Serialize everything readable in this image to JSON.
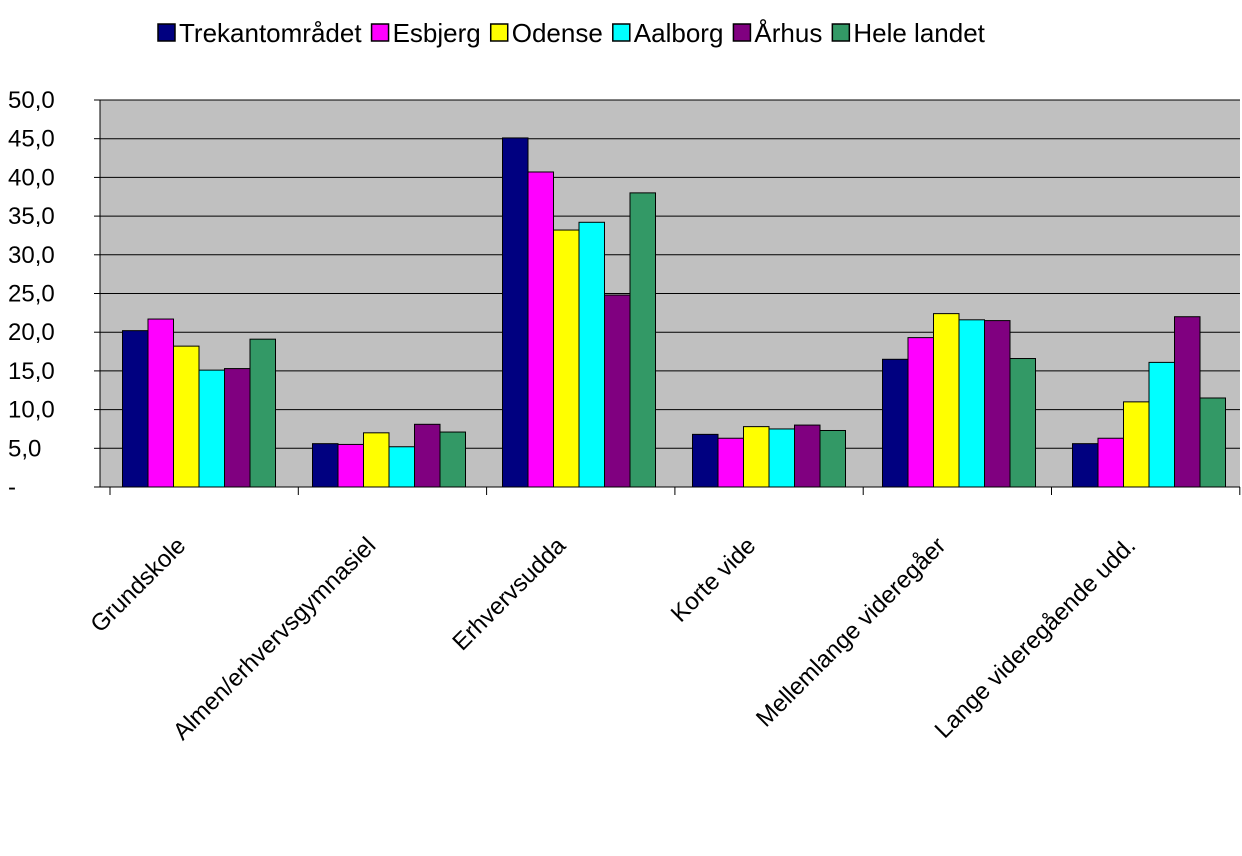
{
  "chart_data": {
    "type": "bar",
    "categories": [
      "Grundskole",
      "Almen/erhvervsgymnasiel",
      "Erhvervsudda",
      "Korte vide",
      "Mellemlange videregåer",
      "Lange videregående udd."
    ],
    "series": [
      {
        "name": "Trekantområdet",
        "color": "#000080",
        "values": [
          20.2,
          5.6,
          45.1,
          6.8,
          16.5,
          5.6
        ]
      },
      {
        "name": "Esbjerg",
        "color": "#FF00FF",
        "values": [
          21.7,
          5.5,
          40.7,
          6.3,
          19.3,
          6.3
        ]
      },
      {
        "name": "Odense",
        "color": "#FFFF00",
        "values": [
          18.2,
          7.0,
          33.2,
          7.8,
          22.4,
          11.0
        ]
      },
      {
        "name": "Aalborg",
        "color": "#00FFFF",
        "values": [
          15.1,
          5.2,
          34.2,
          7.5,
          21.6,
          16.1
        ]
      },
      {
        "name": "Århus",
        "color": "#800080",
        "values": [
          15.3,
          8.1,
          24.8,
          8.0,
          21.5,
          22.0
        ]
      },
      {
        "name": "Hele landet",
        "color": "#339966",
        "values": [
          19.1,
          7.1,
          38.0,
          7.3,
          16.6,
          11.5
        ]
      }
    ],
    "ylim": [
      0,
      50
    ],
    "yticks": [
      {
        "value": 0,
        "label": "-"
      },
      {
        "value": 5,
        "label": "5,0"
      },
      {
        "value": 10,
        "label": "10,0"
      },
      {
        "value": 15,
        "label": "15,0"
      },
      {
        "value": 20,
        "label": "20,0"
      },
      {
        "value": 25,
        "label": "25,0"
      },
      {
        "value": 30,
        "label": "30,0"
      },
      {
        "value": 35,
        "label": "35,0"
      },
      {
        "value": 40,
        "label": "40,0"
      },
      {
        "value": 45,
        "label": "45,0"
      },
      {
        "value": 50,
        "label": "50,0"
      }
    ],
    "grid": true,
    "legend": "top"
  }
}
